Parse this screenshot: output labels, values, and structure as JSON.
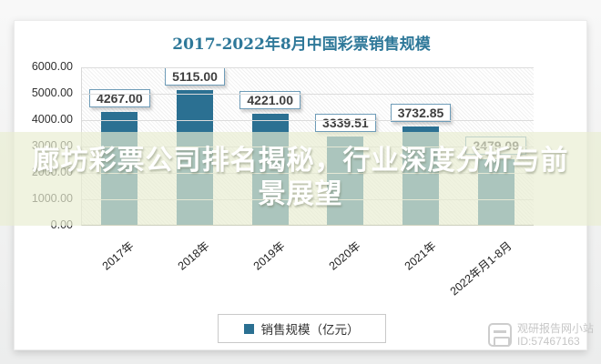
{
  "title": "2017-2022年8月中国彩票销售规模",
  "overlay": {
    "lines": [
      "廊坊彩票公司排名揭秘，行业深度分析与前",
      "景展望"
    ]
  },
  "legend": {
    "label": "销售规模（亿元）",
    "marker_color": "#2b7092"
  },
  "watermark": {
    "site": "观研报告网小站",
    "id": "ID:57467163"
  },
  "chart_data": {
    "type": "bar",
    "title": "2017-2022年8月中国彩票销售规模",
    "categories": [
      "2017年",
      "2018年",
      "2019年",
      "2020年",
      "2021年",
      "2022年月1-8月"
    ],
    "values": [
      4267.0,
      5115.0,
      4221.0,
      3339.51,
      3732.85,
      2479.09
    ],
    "value_labels": [
      "4267.00",
      "5115.00",
      "4221.00",
      "3339.51",
      "3732.85",
      "2479.09"
    ],
    "series_name": "销售规模（亿元）",
    "xlabel": "",
    "ylabel": "销售规模（亿元）",
    "y_ticks": [
      "6000.00",
      "5000.00",
      "4000.00",
      "3000.00",
      "2000.00",
      "1000.00",
      "0.00"
    ],
    "ylim": [
      0,
      6000
    ],
    "grid": true,
    "legend_position": "bottom",
    "bar_color": "#2b7092",
    "x_tick_rotation": -40
  }
}
